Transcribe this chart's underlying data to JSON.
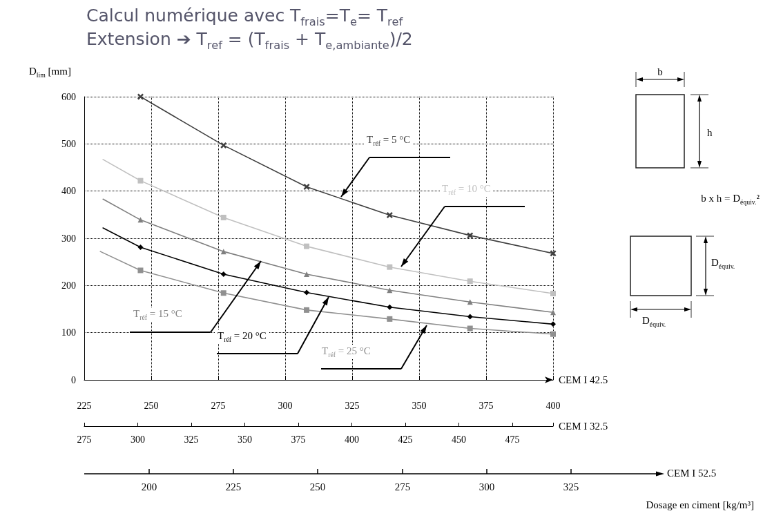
{
  "chart_data": {
    "type": "line",
    "title": "Calcul numérique avec T$_{frais}$=T$_{e}$= T$_{ref}$",
    "subtitle": "Extension ➔ T$_{ref}$ = (T$_{frais}$ + T$_{e,ambiante}$)/2",
    "xlabel": "CEM I 42.5",
    "x2label": "CEM I 32.5",
    "ylabel": "D$_{lim}$ [mm]",
    "xlim": [
      225,
      400
    ],
    "xticks": [
      225,
      250,
      275,
      300,
      325,
      350,
      375,
      400
    ],
    "x2lim": [
      275,
      494
    ],
    "x2ticks": [
      275,
      300,
      325,
      350,
      375,
      400,
      425,
      450,
      475
    ],
    "ylim": [
      0,
      600
    ],
    "yticks": [
      0,
      100,
      200,
      300,
      400,
      500,
      600
    ],
    "grid": true,
    "series": [
      {
        "name": "T$_{réf}$ = 5 °C",
        "color": "#404040",
        "marker": "cross",
        "x": [
          246,
          277,
          308,
          339,
          369,
          400
        ],
        "values": [
          600,
          497,
          409,
          349,
          306,
          268
        ]
      },
      {
        "name": "T$_{réf}$ = 10 °C",
        "color": "#c0c0c0",
        "marker": "square",
        "x": [
          246,
          277,
          308,
          339,
          369,
          400
        ],
        "values": [
          422,
          344,
          283,
          239,
          209,
          183
        ]
      },
      {
        "name": "T$_{réf}$ = 15 °C",
        "color": "#808080",
        "marker": "triangle",
        "x": [
          246,
          277,
          308,
          339,
          369,
          400
        ],
        "values": [
          339,
          272,
          224,
          190,
          165,
          143
        ]
      },
      {
        "name": "T$_{réf}$ = 20 °C",
        "color": "#000000",
        "marker": "diamond",
        "x": [
          246,
          277,
          308,
          339,
          369,
          400
        ],
        "values": [
          281,
          224,
          185,
          154,
          134,
          118
        ]
      },
      {
        "name": "T$_{réf}$ = 25 °C",
        "color": "#909090",
        "marker": "square",
        "x": [
          246,
          277,
          308,
          339,
          369,
          400
        ],
        "values": [
          232,
          184,
          148,
          129,
          109,
          97
        ]
      },
      {
        "color": "#c0c0c0",
        "marker": "none",
        "x": [
          232,
          246
        ],
        "values": [
          467,
          422
        ]
      },
      {
        "color": "#808080",
        "marker": "none",
        "x": [
          232,
          246
        ],
        "values": [
          383,
          339
        ]
      },
      {
        "color": "#000000",
        "marker": "none",
        "x": [
          232,
          246
        ],
        "values": [
          322,
          281
        ]
      },
      {
        "color": "#909090",
        "marker": "none",
        "x": [
          231,
          246
        ],
        "values": [
          272,
          232
        ]
      }
    ],
    "annotations": [
      "b",
      "h",
      "b x h = D$_{équiv.}$²",
      "D$_{équiv.}$",
      "D$_{équiv.}$",
      "Dosage en ciment [kg/m³]",
      "CEM I 52.5",
      "200",
      "225",
      "250",
      "275",
      "300",
      "325"
    ]
  }
}
